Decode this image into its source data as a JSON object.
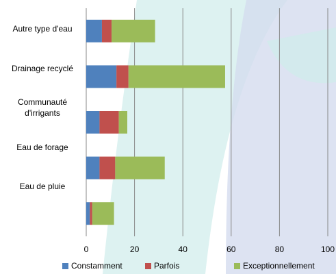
{
  "chart_data": {
    "type": "hbar-stacked",
    "categories": [
      "Autre type d'eau",
      "Drainage recyclé",
      "Communauté d'irrigants",
      "Eau de forage",
      "Eau de pluie"
    ],
    "series": [
      {
        "name": "Constamment",
        "color": "#4f81bd",
        "values": [
          6.5,
          12.5,
          5.5,
          5.5,
          1.5
        ]
      },
      {
        "name": "Parfois",
        "color": "#c0504d",
        "values": [
          4,
          5,
          8,
          6.5,
          1
        ]
      },
      {
        "name": "Exceptionnellement",
        "color": "#9bbb59",
        "values": [
          18,
          40,
          3.5,
          20.5,
          9
        ]
      }
    ],
    "xlim": [
      0,
      100
    ],
    "xticks": [
      0,
      20,
      40,
      60,
      80,
      100
    ],
    "grid": true
  }
}
